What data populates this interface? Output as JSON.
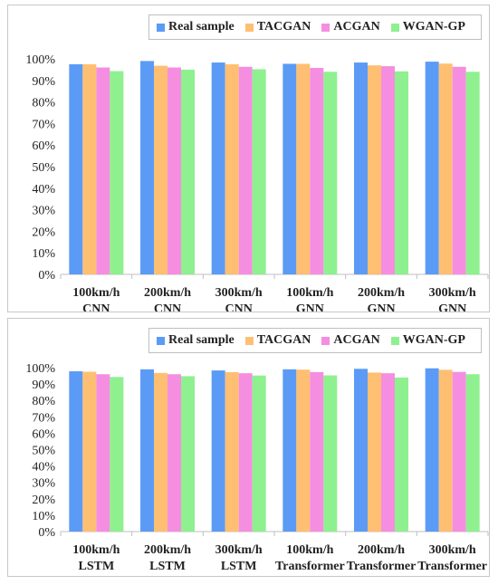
{
  "colors": {
    "Real sample": "#5b9bf5",
    "TACGAN": "#ffbf73",
    "ACGAN": "#f58ee0",
    "WGAN-GP": "#8ff08f"
  },
  "chart_data": [
    {
      "type": "bar",
      "series_names": [
        "Real sample",
        "TACGAN",
        "ACGAN",
        "WGAN-GP"
      ],
      "categories": [
        [
          "100km/h",
          "CNN"
        ],
        [
          "200km/h",
          "CNN"
        ],
        [
          "300km/h",
          "CNN"
        ],
        [
          "100km/h",
          "GNN"
        ],
        [
          "200km/h",
          "GNN"
        ],
        [
          "300km/h",
          "GNN"
        ]
      ],
      "series": [
        {
          "name": "Real sample",
          "values": [
            97.5,
            99.0,
            98.3,
            97.7,
            98.3,
            98.7
          ]
        },
        {
          "name": "TACGAN",
          "values": [
            97.5,
            96.8,
            97.5,
            97.7,
            97.0,
            97.8
          ]
        },
        {
          "name": "ACGAN",
          "values": [
            96.0,
            96.0,
            96.3,
            95.8,
            96.6,
            96.3
          ]
        },
        {
          "name": "WGAN-GP",
          "values": [
            94.3,
            95.0,
            95.2,
            94.0,
            94.2,
            94.0
          ]
        }
      ],
      "yticks": [
        "0%",
        "10%",
        "20%",
        "30%",
        "40%",
        "50%",
        "60%",
        "70%",
        "80%",
        "90%",
        "100%"
      ],
      "ylim": [
        0,
        100
      ],
      "legend_position": "top-right"
    },
    {
      "type": "bar",
      "series_names": [
        "Real sample",
        "TACGAN",
        "ACGAN",
        "WGAN-GP"
      ],
      "categories": [
        [
          "100km/h",
          "LSTM"
        ],
        [
          "200km/h",
          "LSTM"
        ],
        [
          "300km/h",
          "LSTM"
        ],
        [
          "100km/h",
          "Transformer"
        ],
        [
          "200km/h",
          "Transformer"
        ],
        [
          "300km/h",
          "Transformer"
        ]
      ],
      "series": [
        {
          "name": "Real sample",
          "values": [
            97.8,
            99.0,
            98.3,
            99.0,
            99.3,
            99.6
          ]
        },
        {
          "name": "TACGAN",
          "values": [
            97.5,
            96.8,
            97.3,
            98.8,
            97.0,
            98.7
          ]
        },
        {
          "name": "ACGAN",
          "values": [
            96.0,
            96.0,
            96.6,
            97.3,
            96.6,
            97.4
          ]
        },
        {
          "name": "WGAN-GP",
          "values": [
            94.3,
            94.8,
            95.2,
            95.3,
            94.0,
            96.0
          ]
        }
      ],
      "yticks": [
        "0%",
        "10%",
        "20%",
        "30%",
        "40%",
        "50%",
        "60%",
        "70%",
        "80%",
        "90%",
        "100%"
      ],
      "ylim": [
        0,
        100
      ],
      "legend_position": "top-right"
    }
  ]
}
